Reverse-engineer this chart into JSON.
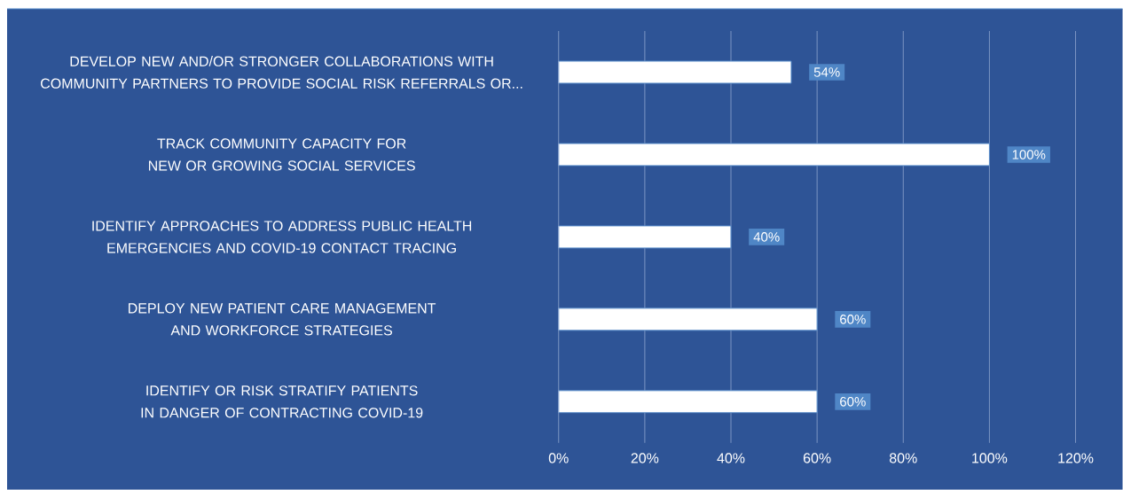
{
  "chart_data": {
    "type": "bar",
    "orientation": "horizontal",
    "categories": [
      "DEVELOP NEW AND/OR STRONGER COLLABORATIONS WITH COMMUNITY PARTNERS TO PROVIDE SOCIAL RISK REFERRALS OR...",
      "TRACK COMMUNITY CAPACITY FOR NEW OR GROWING SOCIAL SERVICES",
      "IDENTIFY APPROACHES TO ADDRESS PUBLIC HEALTH EMERGENCIES AND COVID-19 CONTACT TRACING",
      "DEPLOY NEW PATIENT CARE MANAGEMENT AND WORKFORCE STRATEGIES",
      "IDENTIFY OR RISK STRATIFY PATIENTS IN DANGER OF CONTRACTING COVID-19"
    ],
    "values": [
      54,
      100,
      40,
      60,
      60
    ],
    "value_labels": [
      "54%",
      "100%",
      "40%",
      "60%",
      "60%"
    ],
    "color": "#ffffff",
    "xlim": [
      0,
      120
    ],
    "xticks": [
      {
        "value": 0,
        "label": "0%"
      },
      {
        "value": 20,
        "label": "20%"
      },
      {
        "value": 40,
        "label": "40%"
      },
      {
        "value": 60,
        "label": "60%"
      },
      {
        "value": 80,
        "label": "80%"
      },
      {
        "value": 100,
        "label": "100%"
      },
      {
        "value": 120,
        "label": "120%"
      }
    ],
    "grid": "x"
  }
}
